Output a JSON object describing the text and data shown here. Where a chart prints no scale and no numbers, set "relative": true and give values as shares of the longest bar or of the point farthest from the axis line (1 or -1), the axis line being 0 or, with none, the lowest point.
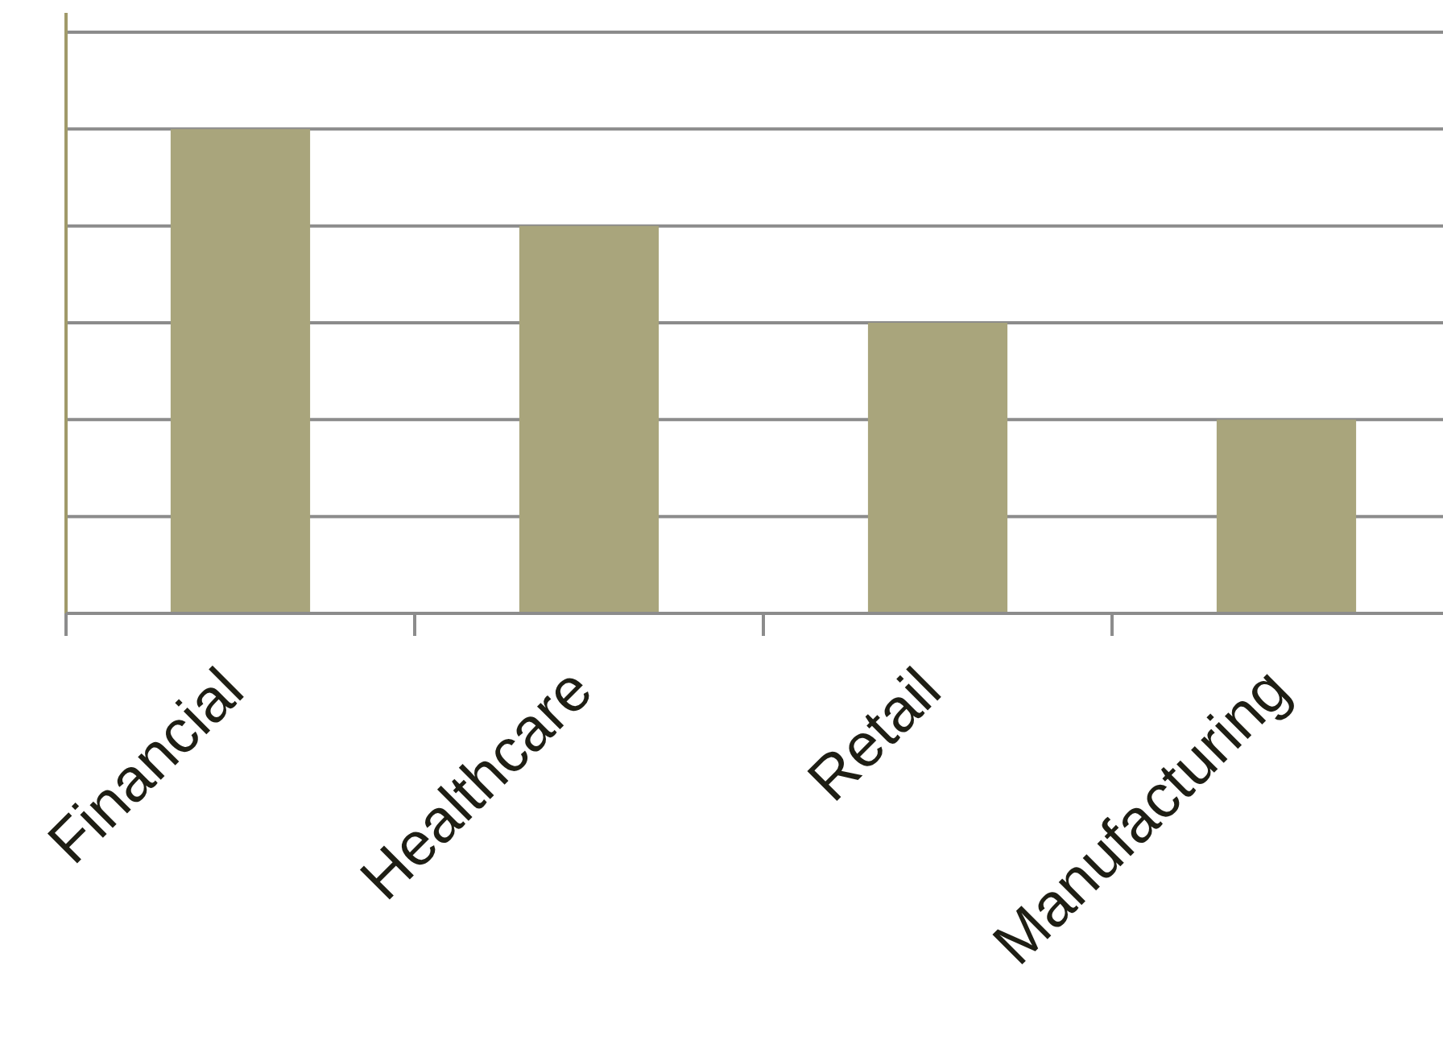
{
  "chart_data": {
    "type": "bar",
    "relative": true,
    "categories": [
      "Financial",
      "Healthcare",
      "Retail",
      "Manufacturing"
    ],
    "values": [
      1,
      0.8,
      0.6,
      0.4
    ],
    "color": "#a9a57c",
    "grid": "y"
  }
}
